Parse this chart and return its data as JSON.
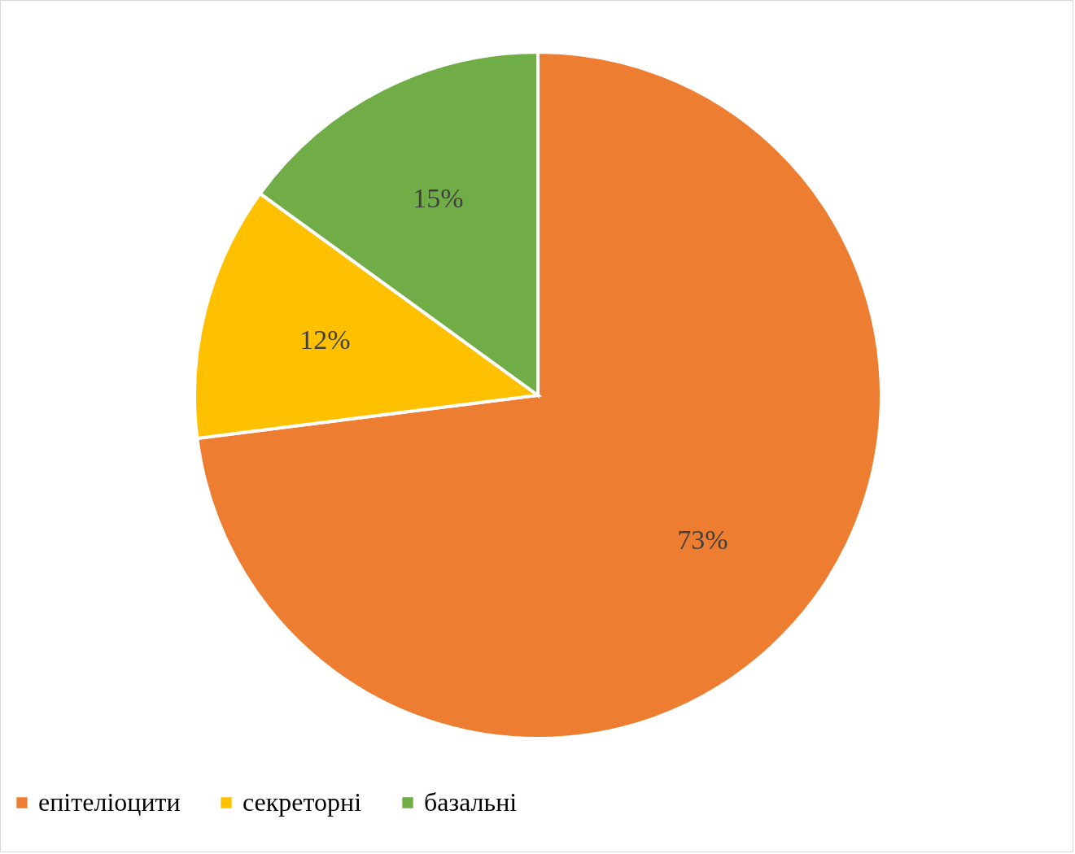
{
  "chart_data": {
    "type": "pie",
    "categories": [
      "епітеліоцити",
      "секреторні",
      "базальні"
    ],
    "values": [
      73,
      12,
      15
    ],
    "value_labels": [
      "73%",
      "12%",
      "15%"
    ],
    "colors": [
      "#ed7d31",
      "#ffc000",
      "#70ad47"
    ],
    "legend": "bottom"
  }
}
